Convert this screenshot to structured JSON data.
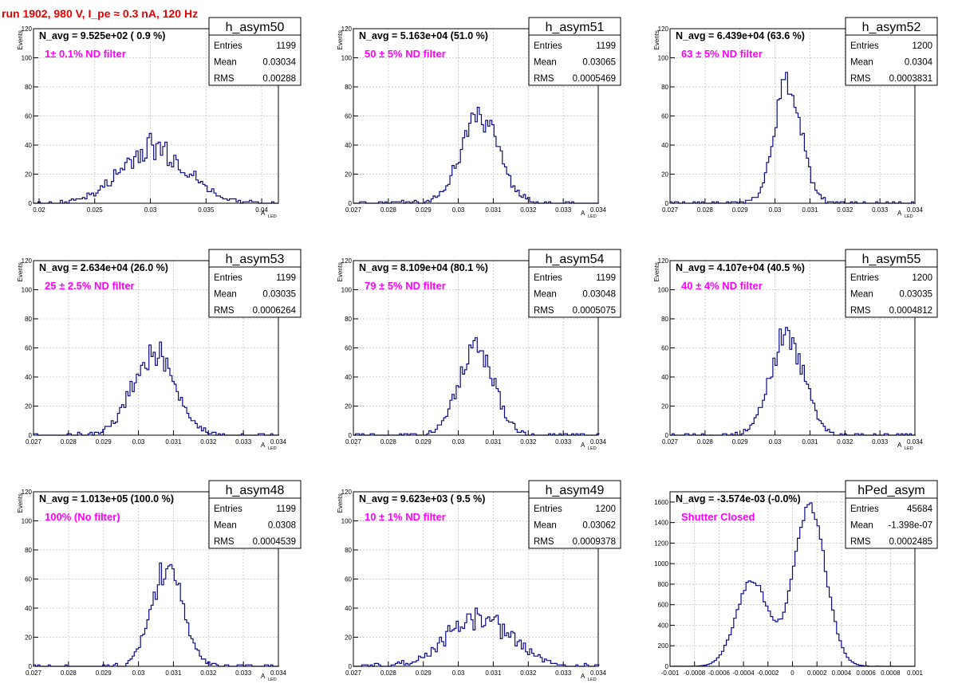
{
  "run_title": "run 1902,   980 V, I_pe ≈ 0.3 nA, 120 Hz",
  "chart_data": [
    {
      "type": "histogram",
      "name": "h_asym50",
      "n_avg_text": "N_avg = 9.525e+02 ( 0.9 %)",
      "filter_text": "1± 0.1% ND filter",
      "stats": {
        "Entries": "1199",
        "Mean": "0.03034",
        "RMS": "0.00288"
      },
      "xlim": [
        0.0195,
        0.0415
      ],
      "ylim": [
        0,
        120
      ],
      "xticks": [
        0.02,
        0.025,
        0.03,
        0.035,
        0.04
      ],
      "xtick_labels": [
        "0.02",
        "0.025",
        "0.03",
        "0.035",
        "0.04"
      ],
      "yticks": [
        0,
        20,
        40,
        60,
        80,
        100,
        120
      ],
      "xlabel": "A",
      "xlabel_sub": "LED",
      "ylabel": "Events",
      "profile": {
        "mode": "gauss",
        "mu": 0.0303,
        "sigma": 0.0029,
        "peak": 38,
        "binw": 0.0002,
        "noise": 0.28,
        "seed": 50
      }
    },
    {
      "type": "histogram",
      "name": "h_asym51",
      "n_avg_text": "N_avg = 5.163e+04 (51.0 %)",
      "filter_text": "50 ± 5% ND filter",
      "stats": {
        "Entries": "1199",
        "Mean": "0.03065",
        "RMS": "0.0005469"
      },
      "xlim": [
        0.027,
        0.034
      ],
      "ylim": [
        0,
        120
      ],
      "xticks": [
        0.027,
        0.028,
        0.029,
        0.03,
        0.031,
        0.032,
        0.033,
        0.034
      ],
      "xtick_labels": [
        "0.027",
        "0.028",
        "0.029",
        "0.03",
        "0.031",
        "0.032",
        "0.033",
        "0.034"
      ],
      "yticks": [
        0,
        20,
        40,
        60,
        80,
        100,
        120
      ],
      "xlabel": "A",
      "xlabel_sub": "LED",
      "ylabel": "Events",
      "profile": {
        "mode": "gauss",
        "mu": 0.03062,
        "sigma": 0.00055,
        "peak": 58,
        "binw": 6e-05,
        "noise": 0.18,
        "seed": 51
      }
    },
    {
      "type": "histogram",
      "name": "h_asym52",
      "n_avg_text": "N_avg = 6.439e+04 (63.6 %)",
      "filter_text": "63 ± 5% ND filter",
      "stats": {
        "Entries": "1200",
        "Mean": "0.0304",
        "RMS": "0.0003831"
      },
      "xlim": [
        0.027,
        0.034
      ],
      "ylim": [
        0,
        120
      ],
      "xticks": [
        0.027,
        0.028,
        0.029,
        0.03,
        0.031,
        0.032,
        0.033,
        0.034
      ],
      "xtick_labels": [
        "0.027",
        "0.028",
        "0.029",
        "0.03",
        "0.031",
        "0.032",
        "0.033",
        "0.034"
      ],
      "yticks": [
        0,
        20,
        40,
        60,
        80,
        100,
        120
      ],
      "xlabel": "A",
      "xlabel_sub": "LED",
      "ylabel": "Events",
      "profile": {
        "mode": "gauss",
        "mu": 0.03038,
        "sigma": 0.00038,
        "peak": 84,
        "binw": 6e-05,
        "noise": 0.13,
        "seed": 52
      }
    },
    {
      "type": "histogram",
      "name": "h_asym53",
      "n_avg_text": "N_avg = 2.634e+04 (26.0 %)",
      "filter_text": "25 ± 2.5% ND filter",
      "stats": {
        "Entries": "1199",
        "Mean": "0.03035",
        "RMS": "0.0006264"
      },
      "xlim": [
        0.027,
        0.034
      ],
      "ylim": [
        0,
        120
      ],
      "xticks": [
        0.027,
        0.028,
        0.029,
        0.03,
        0.031,
        0.032,
        0.033,
        0.034
      ],
      "xtick_labels": [
        "0.027",
        "0.028",
        "0.029",
        "0.03",
        "0.031",
        "0.032",
        "0.033",
        "0.034"
      ],
      "yticks": [
        0,
        20,
        40,
        60,
        80,
        100,
        120
      ],
      "xlabel": "A",
      "xlabel_sub": "LED",
      "ylabel": "Events",
      "profile": {
        "mode": "gauss",
        "mu": 0.03045,
        "sigma": 0.0006,
        "peak": 58,
        "binw": 6e-05,
        "noise": 0.18,
        "seed": 53
      }
    },
    {
      "type": "histogram",
      "name": "h_asym54",
      "n_avg_text": "N_avg = 8.109e+04 (80.1 %)",
      "filter_text": "79 ± 5% ND filter",
      "stats": {
        "Entries": "1199",
        "Mean": "0.03048",
        "RMS": "0.0005075"
      },
      "xlim": [
        0.027,
        0.034
      ],
      "ylim": [
        0,
        120
      ],
      "xticks": [
        0.027,
        0.028,
        0.029,
        0.03,
        0.031,
        0.032,
        0.033,
        0.034
      ],
      "xtick_labels": [
        "0.027",
        "0.028",
        "0.029",
        "0.03",
        "0.031",
        "0.032",
        "0.033",
        "0.034"
      ],
      "yticks": [
        0,
        20,
        40,
        60,
        80,
        100,
        120
      ],
      "xlabel": "A",
      "xlabel_sub": "LED",
      "ylabel": "Events",
      "profile": {
        "mode": "gauss",
        "mu": 0.03052,
        "sigma": 0.0005,
        "peak": 60,
        "binw": 6e-05,
        "noise": 0.16,
        "seed": 54
      }
    },
    {
      "type": "histogram",
      "name": "h_asym55",
      "n_avg_text": "N_avg = 4.107e+04 (40.5 %)",
      "filter_text": "40 ± 4% ND filter",
      "stats": {
        "Entries": "1200",
        "Mean": "0.03035",
        "RMS": "0.0004812"
      },
      "xlim": [
        0.027,
        0.034
      ],
      "ylim": [
        0,
        120
      ],
      "xticks": [
        0.027,
        0.028,
        0.029,
        0.03,
        0.031,
        0.032,
        0.033,
        0.034
      ],
      "xtick_labels": [
        "0.027",
        "0.028",
        "0.029",
        "0.03",
        "0.031",
        "0.032",
        "0.033",
        "0.034"
      ],
      "yticks": [
        0,
        20,
        40,
        60,
        80,
        100,
        120
      ],
      "xlabel": "A",
      "xlabel_sub": "LED",
      "ylabel": "Events",
      "profile": {
        "mode": "gauss",
        "mu": 0.03035,
        "sigma": 0.00048,
        "peak": 68,
        "binw": 6e-05,
        "noise": 0.15,
        "seed": 55
      }
    },
    {
      "type": "histogram",
      "name": "h_asym48",
      "n_avg_text": "N_avg = 1.013e+05 (100.0 %)",
      "filter_text": "100% (No filter)",
      "stats": {
        "Entries": "1199",
        "Mean": "0.0308",
        "RMS": "0.0004539"
      },
      "xlim": [
        0.027,
        0.034
      ],
      "ylim": [
        0,
        120
      ],
      "xticks": [
        0.027,
        0.028,
        0.029,
        0.03,
        0.031,
        0.032,
        0.033,
        0.034
      ],
      "xtick_labels": [
        "0.027",
        "0.028",
        "0.029",
        "0.03",
        "0.031",
        "0.032",
        "0.033",
        "0.034"
      ],
      "yticks": [
        0,
        20,
        40,
        60,
        80,
        100,
        120
      ],
      "xlabel": "A",
      "xlabel_sub": "LED",
      "ylabel": "Events",
      "profile": {
        "mode": "gauss",
        "mu": 0.03082,
        "sigma": 0.00045,
        "peak": 68,
        "binw": 6e-05,
        "noise": 0.15,
        "seed": 48
      }
    },
    {
      "type": "histogram",
      "name": "h_asym49",
      "n_avg_text": "N_avg = 9.623e+03 ( 9.5 %)",
      "filter_text": "10 ± 1% ND filter",
      "stats": {
        "Entries": "1200",
        "Mean": "0.03062",
        "RMS": "0.0009378"
      },
      "xlim": [
        0.027,
        0.034
      ],
      "ylim": [
        0,
        120
      ],
      "xticks": [
        0.027,
        0.028,
        0.029,
        0.03,
        0.031,
        0.032,
        0.033,
        0.034
      ],
      "xtick_labels": [
        "0.027",
        "0.028",
        "0.029",
        "0.03",
        "0.031",
        "0.032",
        "0.033",
        "0.034"
      ],
      "yticks": [
        0,
        20,
        40,
        60,
        80,
        100,
        120
      ],
      "xlabel": "A",
      "xlabel_sub": "LED",
      "ylabel": "Events",
      "profile": {
        "mode": "gauss",
        "mu": 0.03062,
        "sigma": 0.00092,
        "peak": 34,
        "binw": 6e-05,
        "noise": 0.25,
        "seed": 49
      }
    },
    {
      "type": "histogram",
      "name": "hPed_asym",
      "n_avg_text": "N_avg = -3.574e-03 (-0.0%)",
      "filter_text": "Shutter Closed",
      "stats": {
        "Entries": "45684",
        "Mean": "-1.398e-07",
        "RMS": "0.0002485"
      },
      "xlim": [
        -0.001,
        0.001
      ],
      "ylim": [
        0,
        1700
      ],
      "xticks": [
        -0.001,
        -0.0008,
        -0.0006,
        -0.0004,
        -0.0002,
        0,
        0.0002,
        0.0004,
        0.0006,
        0.0008,
        0.001
      ],
      "xtick_labels": [
        "-0.001",
        "-0.0008",
        "-0.0006",
        "-0.0004",
        "-0.0002",
        "0",
        "0.0002",
        "0.0004",
        "0.0006",
        "0.0008",
        "0.001"
      ],
      "yticks": [
        0,
        200,
        400,
        600,
        800,
        1000,
        1200,
        1400,
        1600
      ],
      "xlabel": "",
      "xlabel_sub": "",
      "ylabel": "",
      "profile": {
        "mode": "ped",
        "binw": 2e-05,
        "noise": 0.04,
        "seed": 99
      }
    }
  ]
}
